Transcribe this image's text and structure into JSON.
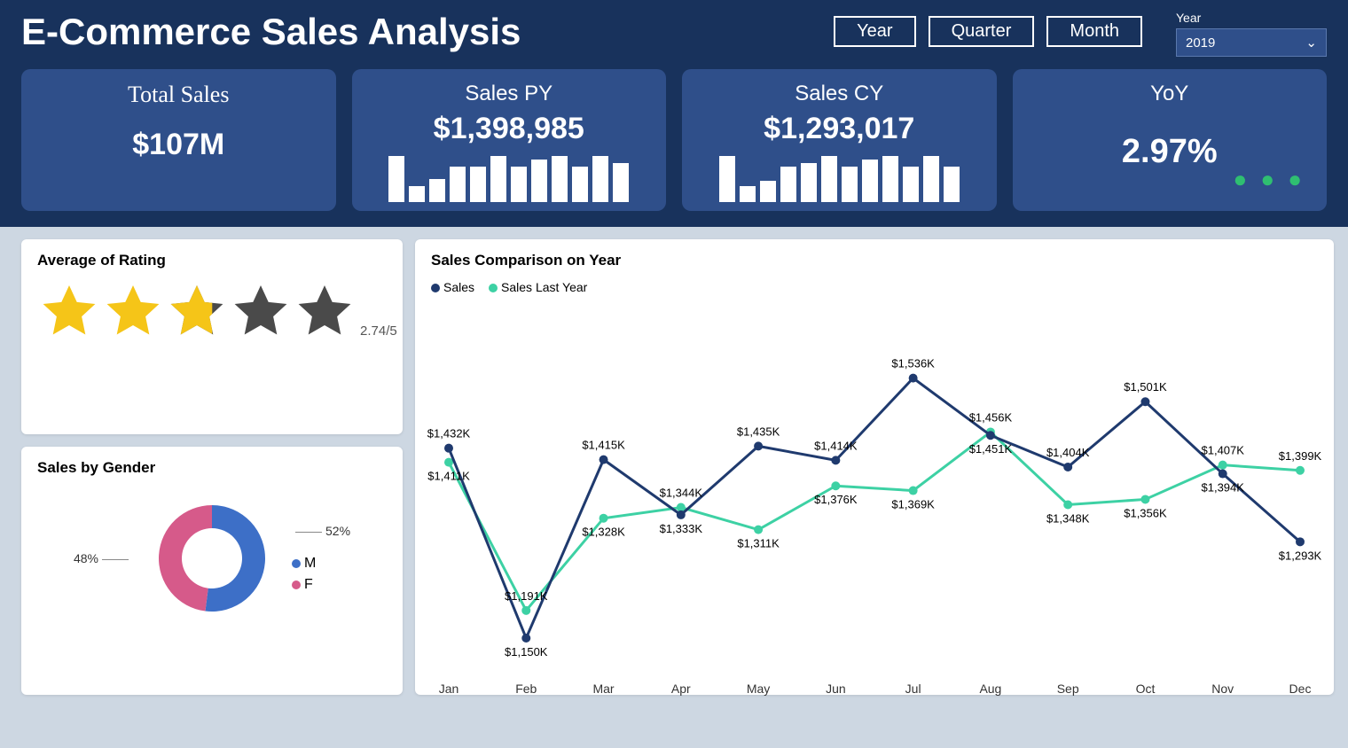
{
  "title": "E-Commerce Sales Analysis",
  "filters": {
    "year": "Year",
    "quarter": "Quarter",
    "month": "Month"
  },
  "yearSelect": {
    "label": "Year",
    "value": "2019"
  },
  "cards": {
    "total": {
      "label": "Total Sales",
      "value": "$107M"
    },
    "py": {
      "label": "Sales PY",
      "value": "$1,398,985",
      "spark": [
        52,
        18,
        26,
        40,
        40,
        52,
        40,
        48,
        52,
        40,
        52,
        44
      ]
    },
    "cy": {
      "label": "Sales CY",
      "value": "$1,293,017",
      "spark": [
        52,
        18,
        24,
        40,
        44,
        52,
        40,
        48,
        52,
        40,
        52,
        40
      ]
    },
    "yoy": {
      "label": "YoY",
      "value": "2.97%"
    }
  },
  "rating": {
    "title": "Average of Rating",
    "value": 2.74,
    "text": "2.74/5",
    "starFill": "#f5c518",
    "starEmpty": "#4a4a4a"
  },
  "gender": {
    "title": "Sales by Gender",
    "m": {
      "label": "M",
      "pct": 52,
      "pctText": "52%",
      "color": "#3d6fc7"
    },
    "f": {
      "label": "F",
      "pct": 48,
      "pctText": "48%",
      "color": "#d65a8a"
    }
  },
  "comparison": {
    "title": "Sales Comparison on Year",
    "legend": {
      "sales": "Sales",
      "lastYear": "Sales Last Year"
    },
    "colors": {
      "sales": "#1f3a6e",
      "lastYear": "#3dd1a4"
    },
    "months": [
      "Jan",
      "Feb",
      "Mar",
      "Apr",
      "May",
      "Jun",
      "Jul",
      "Aug",
      "Sep",
      "Oct",
      "Nov",
      "Dec"
    ],
    "sales": [
      1432,
      1150,
      1415,
      1333,
      1435,
      1414,
      1536,
      1451,
      1404,
      1501,
      1394,
      1293
    ],
    "lastYear": [
      1411,
      1191,
      1328,
      1344,
      1311,
      1376,
      1369,
      1456,
      1348,
      1356,
      1407,
      1399
    ],
    "labels": {
      "sales": [
        "$1,432K",
        "$1,150K",
        "$1,415K",
        "$1,333K",
        "$1,435K",
        "$1,414K",
        "$1,536K",
        "$1,451K",
        "$1,404K",
        "$1,501K",
        "$1,394K",
        "$1,293K"
      ],
      "lastYear": [
        "$1,411K",
        "$1,191K",
        "$1,328K",
        "$1,344K",
        "$1,311K",
        "$1,376K",
        "$1,369K",
        "$1,456K",
        "$1,348K",
        "$1,356K",
        "$1,407K",
        "$1,399K"
      ]
    },
    "yrange": [
      1100,
      1600
    ]
  }
}
